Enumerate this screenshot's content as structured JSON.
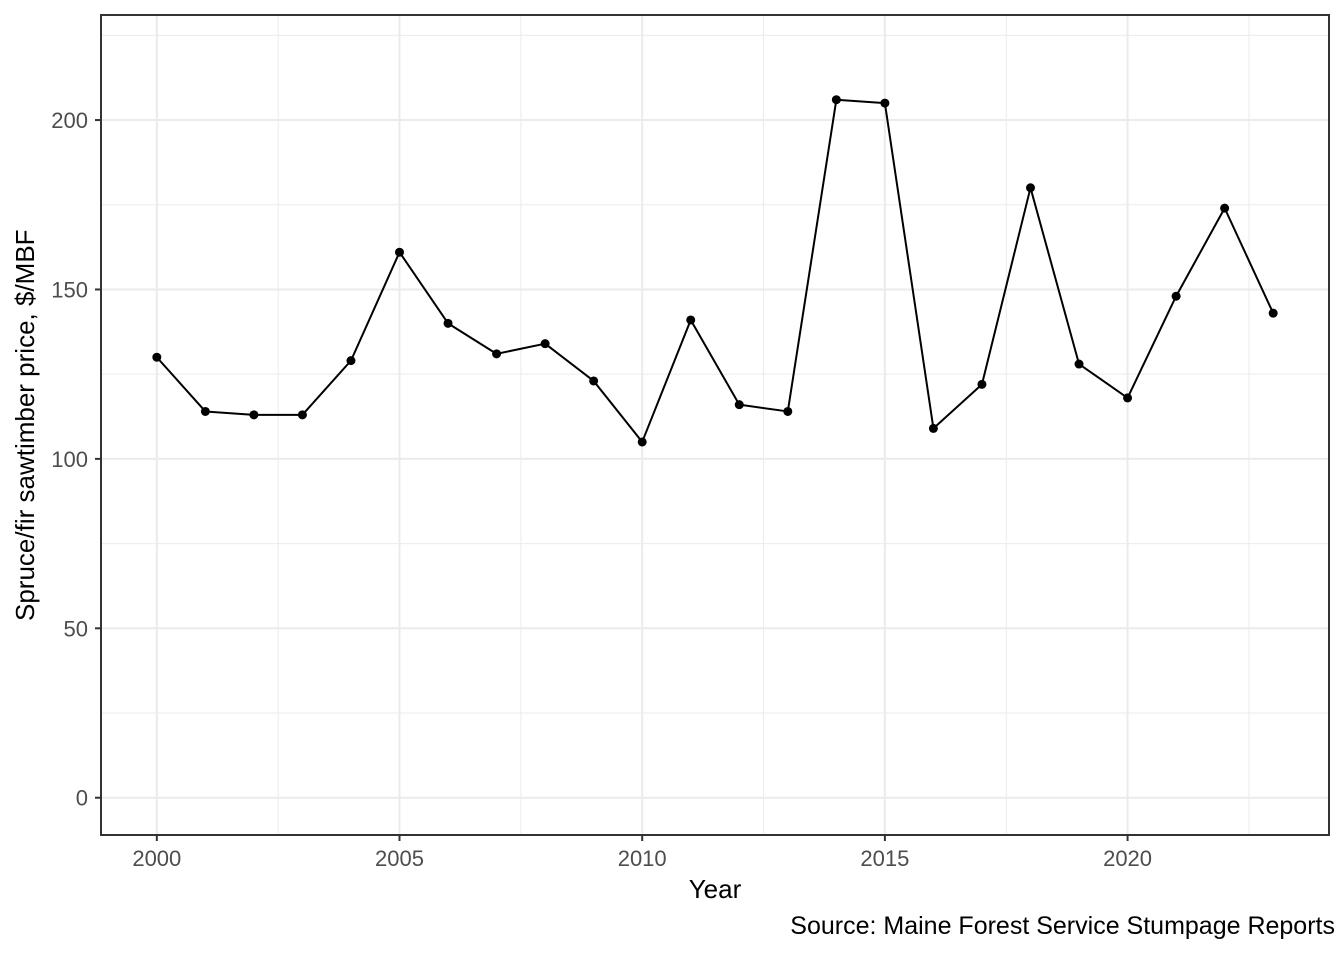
{
  "chart_data": {
    "type": "line",
    "title": "",
    "xlabel": "Year",
    "ylabel": "Spruce/fir sawtimber price, $/MBF",
    "caption": "Source: Maine Forest Service Stumpage Reports",
    "x": [
      2000,
      2001,
      2002,
      2003,
      2004,
      2005,
      2006,
      2007,
      2008,
      2009,
      2010,
      2011,
      2012,
      2013,
      2014,
      2015,
      2016,
      2017,
      2018,
      2019,
      2020,
      2021,
      2022,
      2023
    ],
    "series": [
      {
        "name": "Spruce/fir sawtimber price ($/MBF)",
        "values": [
          130,
          114,
          113,
          113,
          129,
          161,
          140,
          131,
          134,
          123,
          105,
          141,
          116,
          114,
          206,
          205,
          109,
          122,
          180,
          128,
          118,
          148,
          174,
          143
        ]
      }
    ],
    "x_ticks": [
      2000,
      2005,
      2010,
      2015,
      2020
    ],
    "y_ticks": [
      0,
      50,
      100,
      150,
      200
    ],
    "x_minor_gridlines": [
      2002.5,
      2007.5,
      2012.5,
      2017.5,
      2022.5
    ],
    "y_minor_gridlines": [
      25,
      75,
      125,
      175,
      225
    ],
    "xlim": [
      1998.85,
      2024.15
    ],
    "ylim": [
      -11,
      231
    ],
    "grid": "major and minor, light gray, on white panel",
    "legend": "none",
    "marker": "filled circle",
    "colors": {
      "line": "#000000",
      "point": "#000000",
      "gridline": "#ebebeb",
      "panel_border": "#333333",
      "tick_mark": "#333333",
      "tick_label": "#4d4d4d",
      "axis_title": "#000000",
      "caption": "#000000",
      "background": "#ffffff"
    }
  }
}
